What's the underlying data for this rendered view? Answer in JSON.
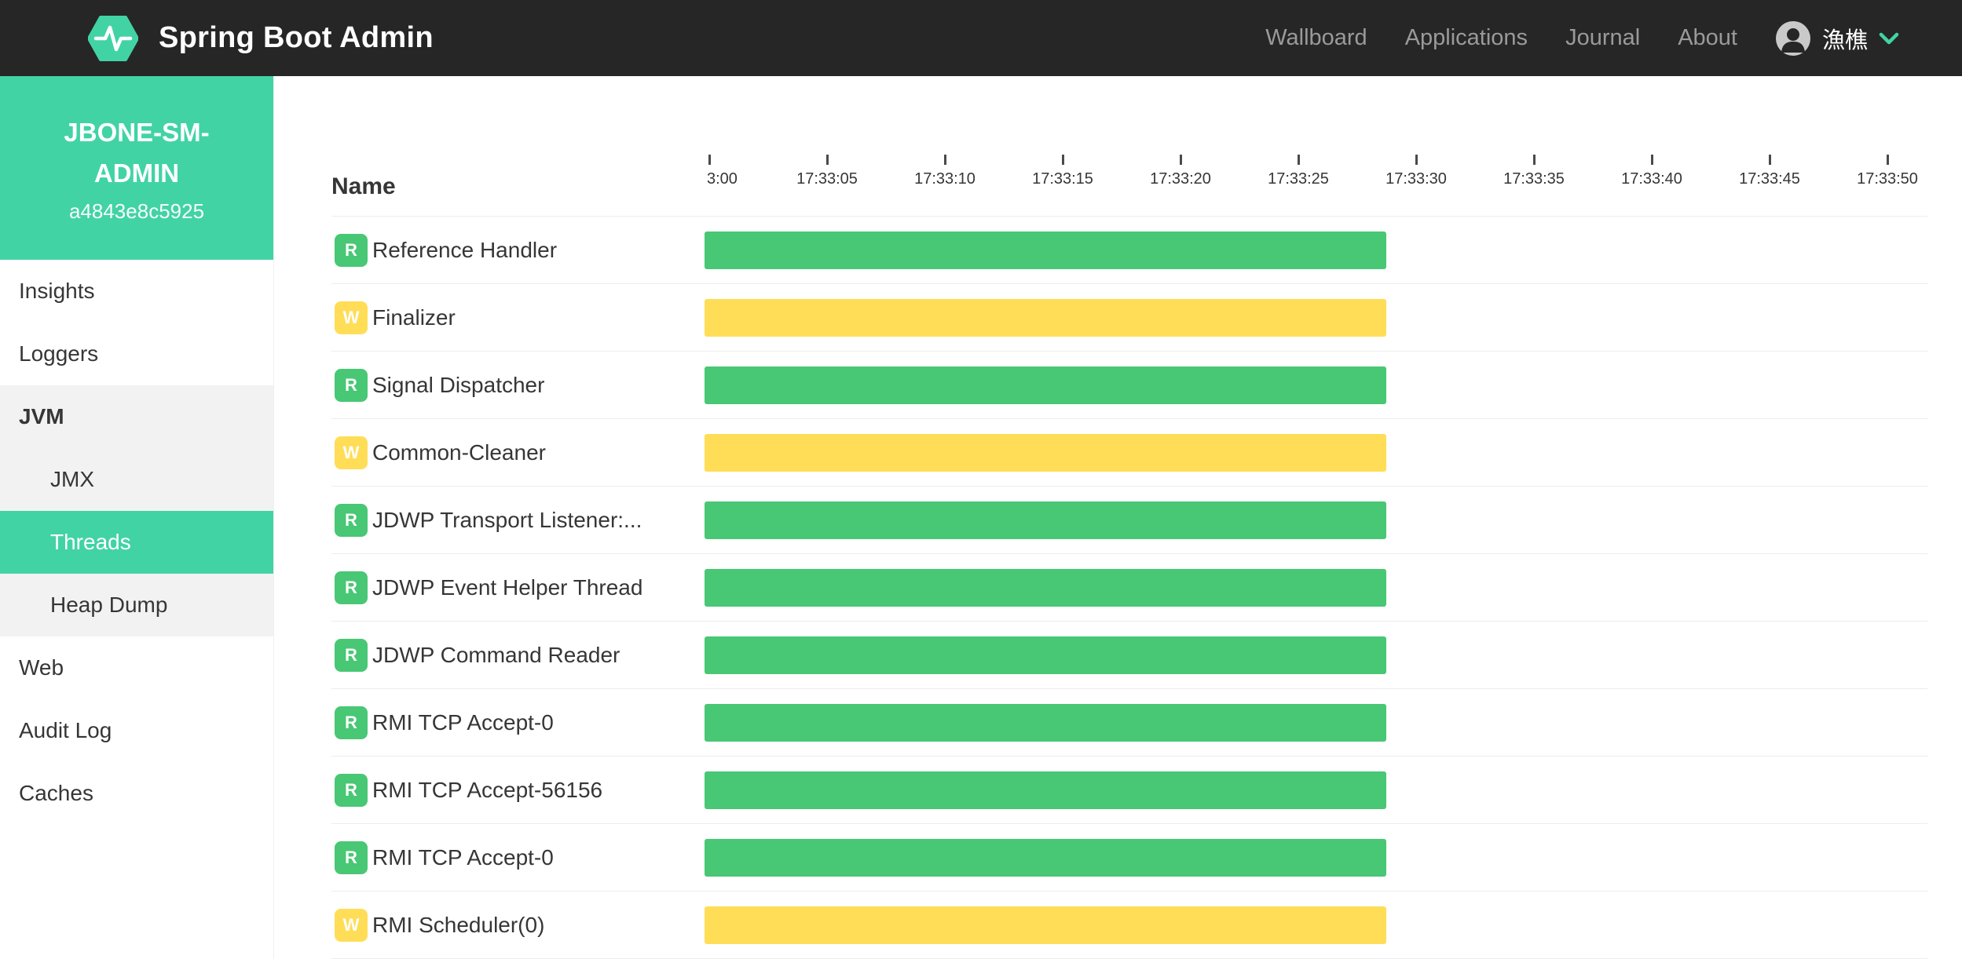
{
  "navbar": {
    "brand": "Spring Boot Admin",
    "links": [
      {
        "label": "Wallboard"
      },
      {
        "label": "Applications"
      },
      {
        "label": "Journal"
      },
      {
        "label": "About"
      }
    ],
    "user": {
      "name": "漁樵"
    }
  },
  "sidebar": {
    "application": {
      "name": "JBONE-SM-ADMIN",
      "instance_id": "a4843e8c5925"
    },
    "items": [
      {
        "label": "Insights",
        "level": 1
      },
      {
        "label": "Loggers",
        "level": 1
      },
      {
        "label": "JVM",
        "level": 1,
        "bold": true,
        "group_bg": true
      },
      {
        "label": "JMX",
        "level": 2,
        "group_bg": true
      },
      {
        "label": "Threads",
        "level": 2,
        "group_bg": true,
        "active": true
      },
      {
        "label": "Heap Dump",
        "level": 2,
        "group_bg": true
      },
      {
        "label": "Web",
        "level": 1
      },
      {
        "label": "Audit Log",
        "level": 1
      },
      {
        "label": "Caches",
        "level": 1
      }
    ]
  },
  "threads": {
    "name_header": "Name",
    "ticks": [
      "3:00",
      "17:33:05",
      "17:33:10",
      "17:33:15",
      "17:33:20",
      "17:33:25",
      "17:33:30",
      "17:33:35",
      "17:33:40",
      "17:33:45",
      "17:33:50"
    ],
    "bar_span": {
      "start": "17:33:00",
      "end": "17:33:29"
    },
    "rows": [
      {
        "state_label": "R",
        "state": "runnable",
        "name": "Reference Handler"
      },
      {
        "state_label": "W",
        "state": "waiting",
        "name": "Finalizer"
      },
      {
        "state_label": "R",
        "state": "runnable",
        "name": "Signal Dispatcher"
      },
      {
        "state_label": "W",
        "state": "waiting",
        "name": "Common-Cleaner"
      },
      {
        "state_label": "R",
        "state": "runnable",
        "name": "JDWP Transport Listener:..."
      },
      {
        "state_label": "R",
        "state": "runnable",
        "name": "JDWP Event Helper Thread"
      },
      {
        "state_label": "R",
        "state": "runnable",
        "name": "JDWP Command Reader"
      },
      {
        "state_label": "R",
        "state": "runnable",
        "name": "RMI TCP Accept-0"
      },
      {
        "state_label": "R",
        "state": "runnable",
        "name": "RMI TCP Accept-56156"
      },
      {
        "state_label": "R",
        "state": "runnable",
        "name": "RMI TCP Accept-0"
      },
      {
        "state_label": "W",
        "state": "waiting",
        "name": "RMI Scheduler(0)"
      }
    ]
  },
  "colors": {
    "accent": "#42d3a5",
    "runnable": "#48c774",
    "waiting": "#ffdd57",
    "navbar_bg": "#262626"
  }
}
